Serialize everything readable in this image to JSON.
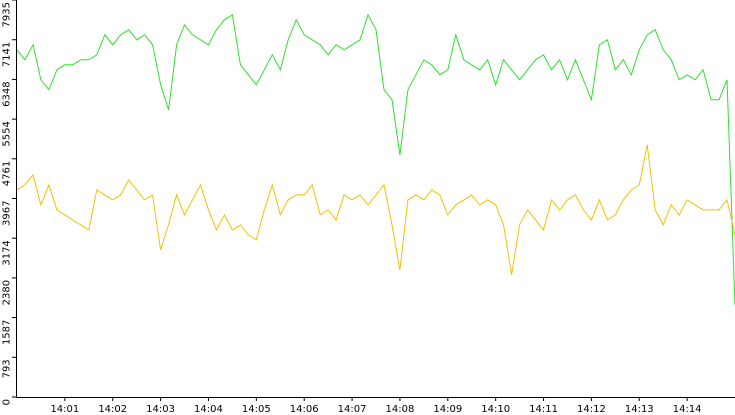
{
  "chart_data": {
    "type": "line",
    "x": [
      0,
      10,
      20,
      30,
      40,
      50,
      60,
      70,
      80,
      90,
      100,
      110,
      120,
      130,
      140,
      150,
      160,
      170,
      180,
      190,
      200,
      210,
      220,
      230,
      240,
      250,
      260,
      270,
      280,
      290,
      300,
      310,
      320,
      330,
      340,
      350,
      360,
      370,
      380,
      390,
      400,
      410,
      420,
      430,
      440,
      450,
      460,
      470,
      480,
      490,
      500,
      510,
      520,
      530,
      540,
      550,
      560,
      570,
      580,
      590,
      600,
      610,
      620,
      630,
      640,
      650,
      660,
      670,
      680,
      690,
      700,
      710,
      720,
      730,
      740,
      750,
      760,
      770,
      780,
      790,
      800,
      810,
      820,
      830,
      840,
      850,
      860,
      870,
      880,
      890,
      900
    ],
    "series": [
      {
        "color": "#2ee02e",
        "values": [
          6940,
          6740,
          7040,
          6340,
          6140,
          6540,
          6640,
          6640,
          6740,
          6740,
          6840,
          7240,
          7040,
          7240,
          7340,
          7140,
          7240,
          7040,
          6240,
          5740,
          7040,
          7440,
          7240,
          7140,
          7040,
          7340,
          7540,
          7640,
          6640,
          6440,
          6240,
          6540,
          6840,
          6540,
          7140,
          7540,
          7240,
          7140,
          7040,
          6840,
          7040,
          6940,
          7040,
          7140,
          7640,
          7340,
          6140,
          5940,
          4840,
          6140,
          6440,
          6740,
          6640,
          6440,
          6540,
          7240,
          6740,
          6640,
          6540,
          6740,
          6240,
          6740,
          6540,
          6340,
          6540,
          6740,
          6840,
          6540,
          6740,
          6340,
          6740,
          6340,
          5940,
          7040,
          7140,
          6540,
          6740,
          6440,
          6940,
          7240,
          7340,
          6940,
          6740,
          6340,
          6440,
          6340,
          6540,
          5940,
          5940,
          6340,
          1840
        ]
      },
      {
        "color": "#f2c200",
        "values": [
          4140,
          4240,
          4440,
          3840,
          4240,
          3740,
          3640,
          3540,
          3440,
          3340,
          4140,
          4040,
          3940,
          4040,
          4340,
          4140,
          3940,
          4040,
          2940,
          3440,
          4040,
          3640,
          3940,
          4240,
          3740,
          3340,
          3640,
          3340,
          3440,
          3240,
          3140,
          3740,
          4240,
          3640,
          3940,
          4040,
          4040,
          4240,
          3640,
          3740,
          3540,
          4040,
          3940,
          4040,
          3840,
          4040,
          4240,
          3440,
          2540,
          3940,
          4040,
          3940,
          4140,
          4040,
          3640,
          3840,
          3940,
          4040,
          3840,
          3940,
          3840,
          3440,
          2440,
          3440,
          3740,
          3540,
          3340,
          3940,
          3740,
          3940,
          4040,
          3740,
          3540,
          3940,
          3540,
          3640,
          3940,
          4140,
          4240,
          5040,
          3740,
          3440,
          3840,
          3640,
          3940,
          3840,
          3740,
          3740,
          3740,
          3940,
          3240
        ]
      }
    ],
    "xlim": [
      0,
      900
    ],
    "xticks": [
      {
        "value": 60,
        "label": "14:01"
      },
      {
        "value": 120,
        "label": "14:02"
      },
      {
        "value": 180,
        "label": "14:03"
      },
      {
        "value": 240,
        "label": "14:04"
      },
      {
        "value": 300,
        "label": "14:05"
      },
      {
        "value": 360,
        "label": "14:06"
      },
      {
        "value": 420,
        "label": "14:07"
      },
      {
        "value": 480,
        "label": "14:08"
      },
      {
        "value": 540,
        "label": "14:09"
      },
      {
        "value": 600,
        "label": "14:10"
      },
      {
        "value": 660,
        "label": "14:11"
      },
      {
        "value": 720,
        "label": "14:12"
      },
      {
        "value": 780,
        "label": "14:13"
      },
      {
        "value": 840,
        "label": "14:14"
      }
    ],
    "ylim": [
      0,
      7935
    ],
    "yticks": [
      0,
      793,
      1587,
      2380,
      3174,
      3967,
      4761,
      5554,
      6348,
      7141,
      7935
    ],
    "grid": false
  }
}
